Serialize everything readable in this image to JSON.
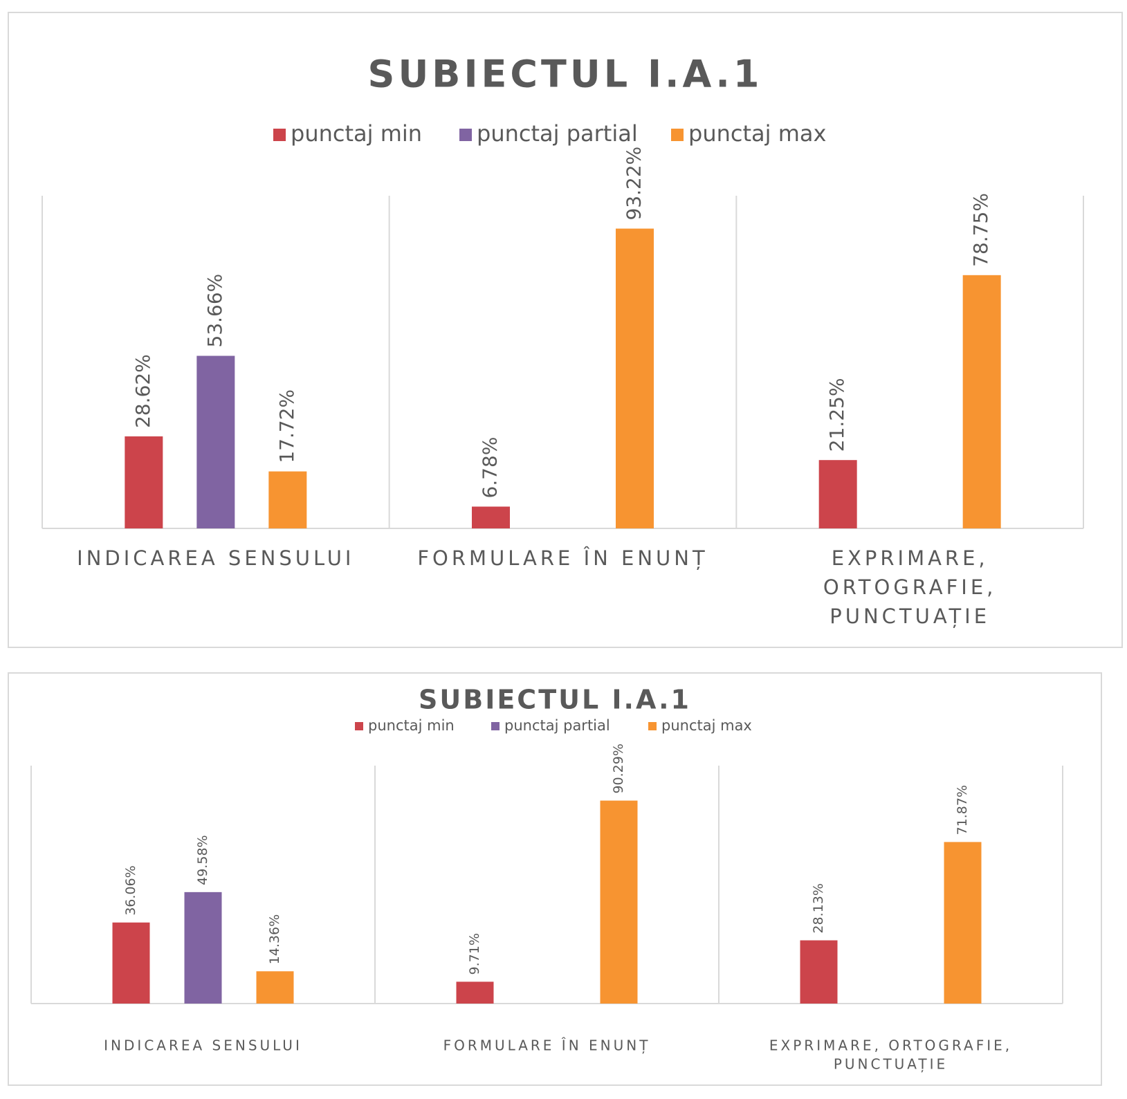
{
  "chart_data": [
    {
      "type": "bar",
      "title": "SUBIECTUL  I.A.1",
      "categories": [
        [
          "INDICAREA SENSULUI"
        ],
        [
          "FORMULARE ÎN ENUNȚ"
        ],
        [
          "EXPRIMARE,",
          "ORTOGRAFIE,",
          "PUNCTUAȚIE"
        ]
      ],
      "series": [
        {
          "name": "punctaj min",
          "values": [
            28.62,
            6.78,
            21.25
          ],
          "labels": [
            "28.62%",
            "6.78%",
            "21.25%"
          ]
        },
        {
          "name": "punctaj partial",
          "values": [
            53.66,
            null,
            null
          ],
          "labels": [
            "53.66%",
            null,
            null
          ]
        },
        {
          "name": "punctaj max",
          "values": [
            17.72,
            93.22,
            78.75
          ],
          "labels": [
            "17.72%",
            "93.22%",
            "78.75%"
          ]
        }
      ],
      "ylim": [
        0,
        100
      ],
      "grid": false,
      "legend": "top"
    },
    {
      "type": "bar",
      "title": "SUBIECTUL  I.A.1",
      "categories": [
        [
          "INDICAREA SENSULUI"
        ],
        [
          "FORMULARE ÎN ENUNȚ"
        ],
        [
          "EXPRIMARE, ORTOGRAFIE,",
          "PUNCTUAȚIE"
        ]
      ],
      "series": [
        {
          "name": "punctaj min",
          "values": [
            36.06,
            9.71,
            28.13
          ],
          "labels": [
            "36.06%",
            "9.71%",
            "28.13%"
          ]
        },
        {
          "name": "punctaj partial",
          "values": [
            49.58,
            null,
            null
          ],
          "labels": [
            "49.58%",
            null,
            null
          ]
        },
        {
          "name": "punctaj max",
          "values": [
            14.36,
            90.29,
            71.87
          ],
          "labels": [
            "14.36%",
            "90.29%",
            "71.87%"
          ]
        }
      ],
      "ylim": [
        0,
        100
      ],
      "grid": false,
      "legend": "top"
    }
  ],
  "colors": {
    "punctaj min": "#cc444b",
    "punctaj partial": "#8064a2",
    "punctaj max": "#f79431",
    "axis": "#d9d9d9",
    "text": "#595959"
  }
}
